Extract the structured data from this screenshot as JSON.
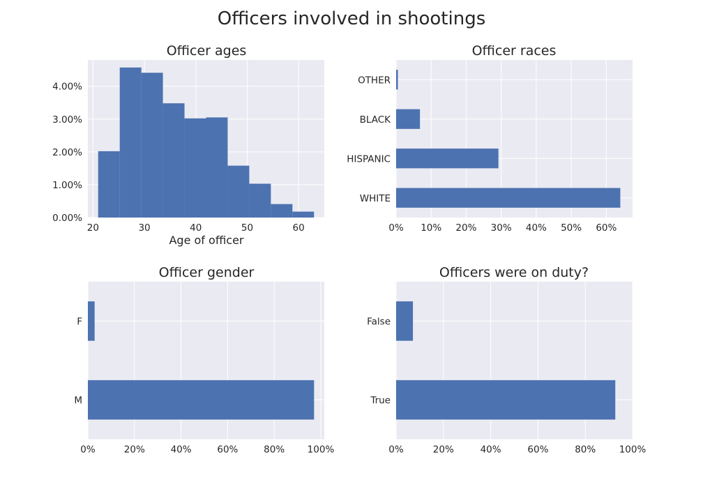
{
  "figure": {
    "title": "Officers involved in shootings",
    "colors": {
      "bar": "#4c72b0",
      "panel_bg": "#eaeaf2",
      "grid": "#ffffff",
      "text": "#262626"
    }
  },
  "chart_data": [
    {
      "id": "ages",
      "type": "bar",
      "title": "Officer ages",
      "xlabel": "Age of officer",
      "ylabel": "",
      "bins": [
        {
          "x0": 21.0,
          "x1": 25.2,
          "value": 2.02
        },
        {
          "x0": 25.2,
          "x1": 29.4,
          "value": 4.57
        },
        {
          "x0": 29.4,
          "x1": 33.6,
          "value": 4.41
        },
        {
          "x0": 33.6,
          "x1": 37.8,
          "value": 3.48
        },
        {
          "x0": 37.8,
          "x1": 42.0,
          "value": 3.02
        },
        {
          "x0": 42.0,
          "x1": 46.2,
          "value": 3.05
        },
        {
          "x0": 46.2,
          "x1": 50.4,
          "value": 1.58
        },
        {
          "x0": 50.4,
          "x1": 54.6,
          "value": 1.03
        },
        {
          "x0": 54.6,
          "x1": 58.8,
          "value": 0.41
        },
        {
          "x0": 58.8,
          "x1": 63.0,
          "value": 0.18
        }
      ],
      "xlim": [
        19.0,
        65.0
      ],
      "ylim": [
        0,
        4.8
      ],
      "xticks": [
        20,
        30,
        40,
        50,
        60
      ],
      "xtick_labels": [
        "20",
        "30",
        "40",
        "50",
        "60"
      ],
      "yticks": [
        0,
        1,
        2,
        3,
        4
      ],
      "ytick_labels": [
        "0.00%",
        "1.00%",
        "2.00%",
        "3.00%",
        "4.00%"
      ],
      "grid": true
    },
    {
      "id": "races",
      "type": "bar",
      "orientation": "horizontal",
      "title": "Officer races",
      "categories": [
        "OTHER",
        "BLACK",
        "HISPANIC",
        "WHITE"
      ],
      "values": [
        0.5,
        6.8,
        29.2,
        64.0
      ],
      "xlim": [
        0,
        67.5
      ],
      "xticks": [
        0,
        10,
        20,
        30,
        40,
        50,
        60
      ],
      "xtick_labels": [
        "0%",
        "10%",
        "20%",
        "30%",
        "40%",
        "50%",
        "60%"
      ],
      "grid": true
    },
    {
      "id": "gender",
      "type": "bar",
      "orientation": "horizontal",
      "title": "Officer gender",
      "categories": [
        "F",
        "M"
      ],
      "values": [
        2.9,
        97.1
      ],
      "xlim": [
        0,
        101.5
      ],
      "xticks": [
        0,
        20,
        40,
        60,
        80,
        100
      ],
      "xtick_labels": [
        "0%",
        "20%",
        "40%",
        "60%",
        "80%",
        "100%"
      ],
      "grid": true
    },
    {
      "id": "duty",
      "type": "bar",
      "orientation": "horizontal",
      "title": "Officers were on duty?",
      "categories": [
        "False",
        "True"
      ],
      "values": [
        7.1,
        92.7
      ],
      "xlim": [
        0,
        100
      ],
      "xticks": [
        0,
        20,
        40,
        60,
        80,
        100
      ],
      "xtick_labels": [
        "0%",
        "20%",
        "40%",
        "60%",
        "80%",
        "100%"
      ],
      "grid": true
    }
  ]
}
